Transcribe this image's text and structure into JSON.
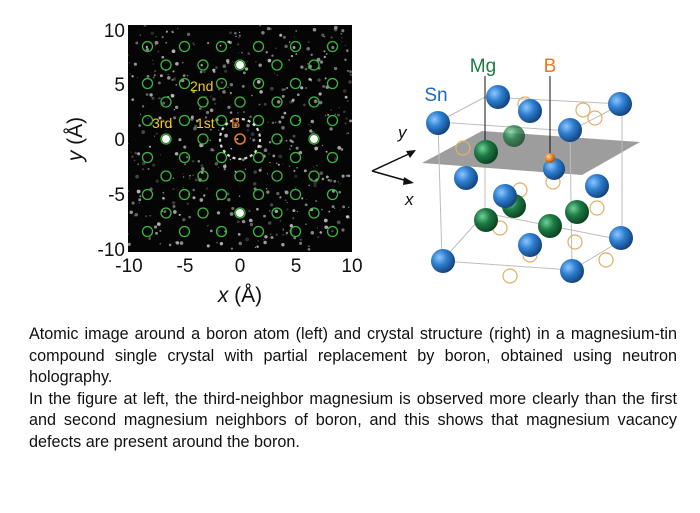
{
  "left_panel": {
    "y_ticks": [
      "10",
      "5",
      "0",
      "-5",
      "-10"
    ],
    "x_ticks": [
      "-10",
      "-5",
      "0",
      "5",
      "10"
    ],
    "x_label_var": "x",
    "x_label_unit": " (Å)",
    "y_label_var": "y",
    "y_label_unit": " (Å)",
    "annotations": {
      "second": "2nd",
      "third": "3rd",
      "first": "1st",
      "boron": "B"
    }
  },
  "right_panel": {
    "label_mg": "Mg",
    "label_b": "B",
    "label_sn": "Sn",
    "axis_x": "x",
    "axis_y": "y"
  },
  "colors": {
    "sn": "#2e7fd0",
    "mg": "#1d7a43",
    "boron": "#e87a1e",
    "annotation": "#f2cc1a",
    "ring": "#3cb83c",
    "label_mg": "#1d7a43",
    "label_b": "#e87a1e",
    "label_sn": "#1c69c4"
  },
  "caption": {
    "para1": "Atomic image around a boron atom (left) and crystal structure (right) in a magnesium-tin compound single crystal with partial replacement by boron, obtained using neutron holography.",
    "para2": "In the figure at left, the third-neighbor magnesium is observed more clearly than the first and second magnesium neighbors of boron, and this shows that magnesium vacancy defects are present around the boron."
  }
}
